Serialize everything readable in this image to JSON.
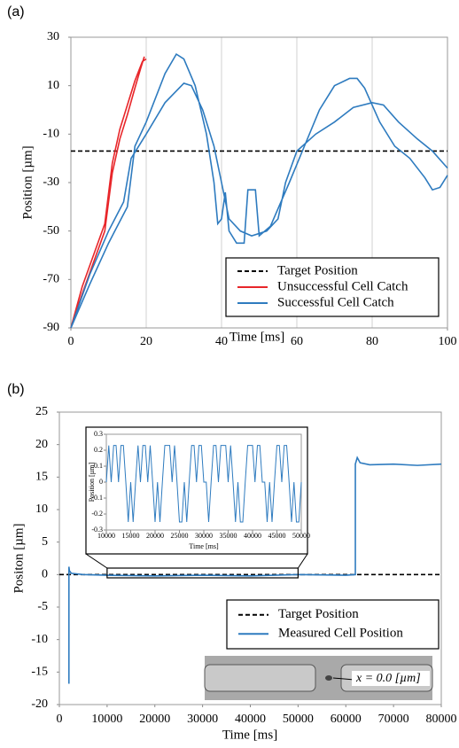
{
  "chart_data": [
    {
      "type": "line",
      "panel": "(a)",
      "xlabel": "Time [ms]",
      "ylabel": "Position [µm]",
      "xlim": [
        0,
        100
      ],
      "xticks": [
        0,
        20,
        40,
        60,
        80,
        100
      ],
      "ylim": [
        -90,
        30
      ],
      "yticks": [
        -90,
        -70,
        -50,
        -30,
        -10,
        10,
        30
      ],
      "series": [
        {
          "name": "Target Position",
          "color": "#000000",
          "dashed": true,
          "x": [
            0,
            100
          ],
          "values": [
            -17,
            -17
          ]
        },
        {
          "name": "Unsuccessful Cell Catch",
          "color": "#e8262a",
          "dashed": false,
          "x": [
            0,
            3,
            6,
            9,
            11,
            13,
            15,
            17,
            19,
            20,
            null,
            0,
            3,
            6,
            9,
            11,
            13,
            15,
            17,
            18.5,
            19.5
          ],
          "values": [
            -90,
            -73,
            -60,
            -47,
            -22,
            -8,
            2,
            12,
            20,
            21,
            null,
            -90,
            -76,
            -63,
            -50,
            -26,
            -12,
            -2,
            9,
            17,
            22
          ]
        },
        {
          "name": "Successful Cell Catch",
          "color": "#2e7bbf",
          "dashed": false,
          "x": [
            0,
            5,
            10,
            15,
            17,
            20,
            25,
            28,
            30,
            33,
            36,
            38,
            39,
            40,
            41,
            42,
            44,
            46,
            47,
            49,
            50,
            53,
            58,
            62,
            66,
            70,
            74,
            76,
            78,
            82,
            86,
            90,
            94,
            96,
            98,
            100,
            null,
            0,
            5,
            10,
            14,
            16,
            20,
            25,
            30,
            32,
            35,
            38,
            40,
            42,
            45,
            48,
            52,
            55,
            57,
            60,
            65,
            70,
            75,
            80,
            83,
            87,
            92,
            96,
            100
          ],
          "values": [
            -90,
            -72,
            -55,
            -40,
            -15,
            -5,
            15,
            23,
            21,
            10,
            -10,
            -30,
            -47,
            -45,
            -34,
            -50,
            -55,
            -55,
            -33,
            -33,
            -52,
            -48,
            -30,
            -15,
            0,
            10,
            13,
            13,
            9,
            -5,
            -15,
            -20,
            -28,
            -33,
            -32,
            -27,
            null,
            -90,
            -68,
            -50,
            -38,
            -20,
            -10,
            3,
            11,
            10,
            0,
            -15,
            -30,
            -45,
            -50,
            -52,
            -50,
            -45,
            -30,
            -17,
            -10,
            -5,
            1,
            3,
            2,
            -5,
            -12,
            -17,
            -24
          ]
        }
      ]
    },
    {
      "type": "line",
      "panel": "(b)",
      "xlabel": "Time [ms]",
      "ylabel": "Positon [µm]",
      "annotation": "x = 0.0 [µm]",
      "xlim": [
        0,
        80000
      ],
      "xticks": [
        0,
        10000,
        20000,
        30000,
        40000,
        50000,
        60000,
        70000,
        80000
      ],
      "ylim": [
        -20,
        25
      ],
      "yticks": [
        -20,
        -15,
        -10,
        -5,
        0,
        5,
        10,
        15,
        20,
        25
      ],
      "series": [
        {
          "name": "Target Position",
          "color": "#000000",
          "dashed": true,
          "x": [
            0,
            80000
          ],
          "values": [
            0,
            0
          ]
        },
        {
          "name": "Measured Cell Position",
          "color": "#2e7bbf",
          "dashed": false,
          "x": [
            2000,
            2000,
            2100,
            2500,
            5000,
            10000,
            20000,
            30000,
            40000,
            50000,
            60000,
            62000,
            62000,
            62400,
            63000,
            65000,
            70000,
            75000,
            80000
          ],
          "values": [
            -16.8,
            1.2,
            0.6,
            0.2,
            0,
            -0.1,
            -0.2,
            -0.1,
            -0.2,
            0,
            -0.1,
            0,
            17,
            18,
            17.2,
            16.9,
            17,
            16.8,
            17
          ]
        }
      ]
    },
    {
      "type": "line",
      "xlabel": "Time [ms]",
      "ylabel": "Position [µm]",
      "xlim": [
        10000,
        50000
      ],
      "xticks": [
        10000,
        15000,
        20000,
        25000,
        30000,
        35000,
        40000,
        45000,
        50000
      ],
      "ylim": [
        -0.3,
        0.3
      ],
      "yticks": [
        -0.3,
        -0.2,
        -0.1,
        0,
        0.1,
        0.2,
        0.3
      ],
      "series": [
        {
          "name": "Measured Cell Position",
          "color": "#2e7bbf",
          "dashed": false,
          "x": [
            10000,
            10500,
            11000,
            11500,
            12000,
            12500,
            13000,
            13500,
            14000,
            14500,
            15000,
            15500,
            16000,
            16500,
            17000,
            17500,
            18000,
            18500,
            19000,
            19500,
            20000,
            20500,
            21000,
            21500,
            22000,
            22500,
            23000,
            23500,
            24000,
            24500,
            25000,
            25500,
            26000,
            26500,
            27000,
            27500,
            28000,
            28500,
            29000,
            29500,
            30000,
            30500,
            31000,
            31500,
            32000,
            32500,
            33000,
            33500,
            34000,
            34500,
            35000,
            35500,
            36000,
            36500,
            37000,
            37500,
            38000,
            38500,
            39000,
            39500,
            40000,
            40500,
            41000,
            41500,
            42000,
            42500,
            43000,
            43500,
            44000,
            44500,
            45000,
            45500,
            46000,
            46500,
            47000,
            47500,
            48000,
            48500,
            49000,
            49500,
            50000
          ],
          "values": [
            0,
            0.23,
            0,
            0.23,
            0.23,
            0,
            0.23,
            0.23,
            0,
            -0.25,
            0,
            -0.25,
            0,
            0.23,
            0,
            0.23,
            0.23,
            0,
            0.23,
            0,
            -0.25,
            0,
            -0.25,
            0,
            0.23,
            0.23,
            0.23,
            0,
            0.23,
            0,
            -0.25,
            -0.25,
            0,
            -0.25,
            0,
            0.23,
            0.23,
            0,
            0.23,
            0.23,
            0,
            0,
            -0.25,
            0,
            0.23,
            0.23,
            0,
            0.23,
            0.23,
            0.23,
            0,
            0.23,
            0,
            -0.25,
            0,
            -0.25,
            -0.25,
            0,
            0.23,
            0.23,
            0.23,
            0,
            0.23,
            0.23,
            0,
            0,
            -0.25,
            0,
            -0.25,
            0,
            0.23,
            0.23,
            0,
            0.23,
            0.23,
            0,
            -0.25,
            0,
            -0.25,
            -0.25,
            0
          ]
        }
      ]
    }
  ]
}
